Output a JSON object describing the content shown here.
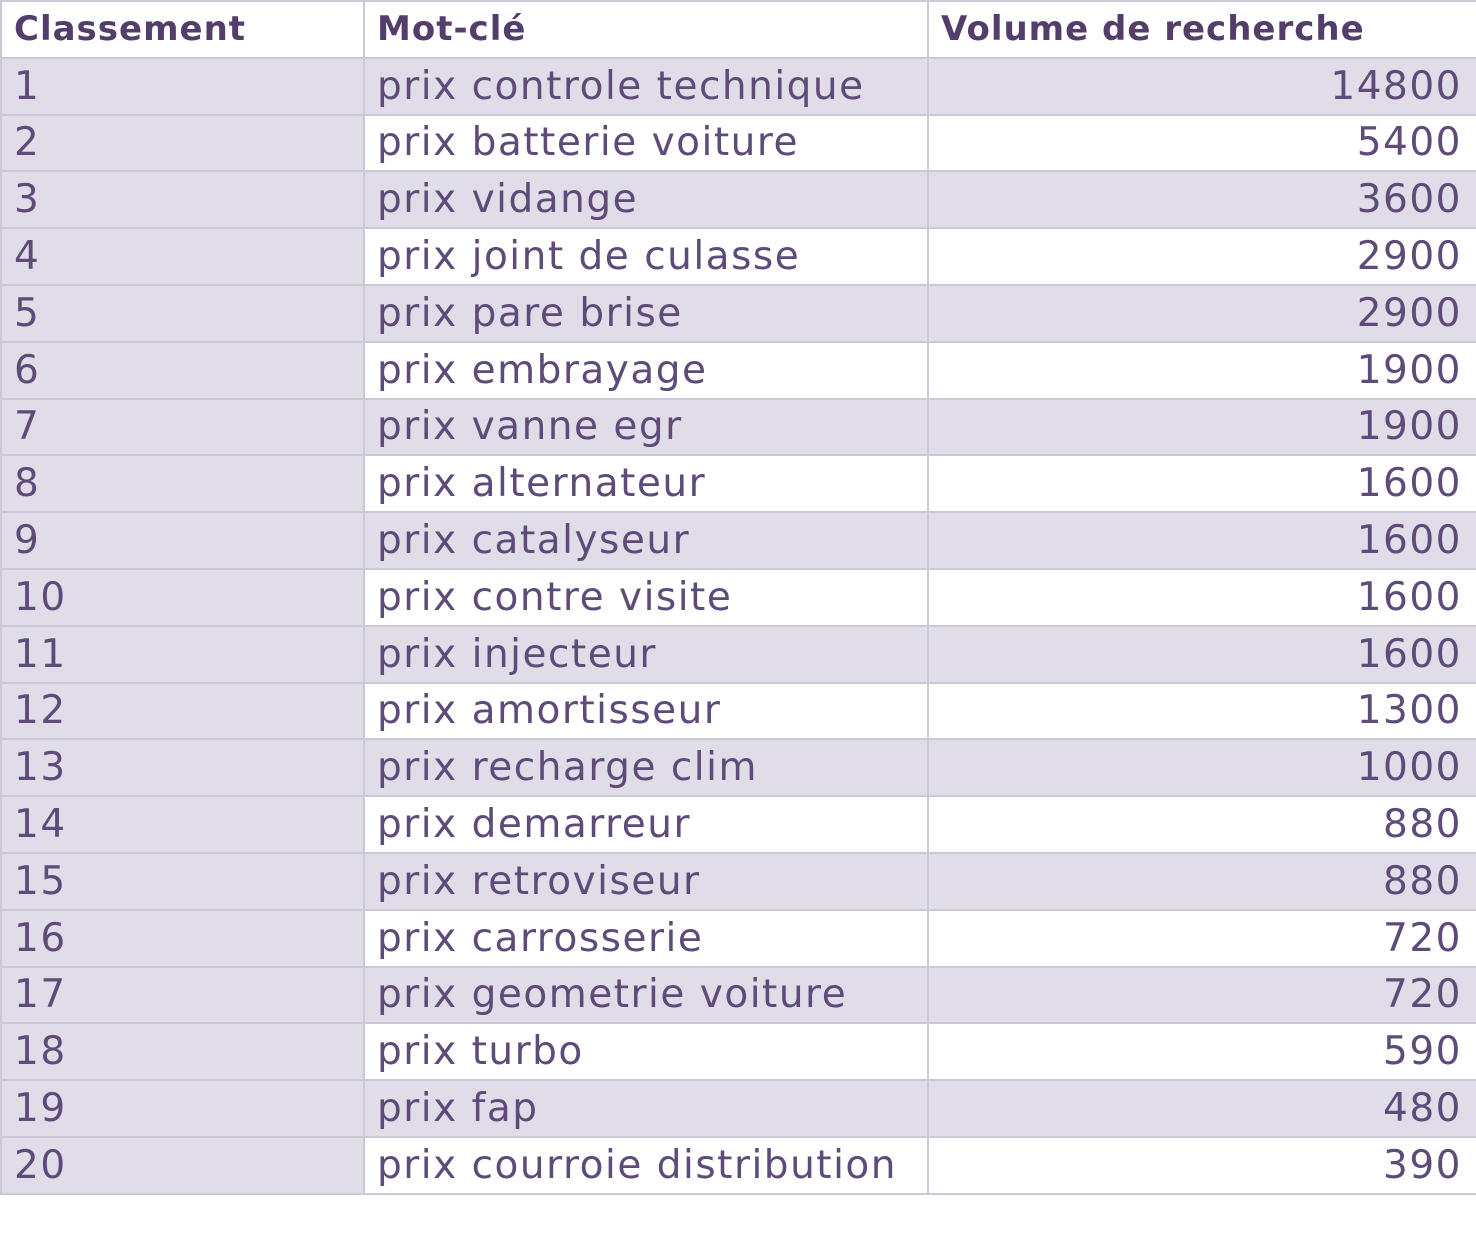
{
  "chart_data": {
    "type": "table",
    "columns": [
      "Classement",
      "Mot-clé",
      "Volume de recherche"
    ],
    "rows": [
      {
        "rank": "1",
        "keyword": "prix controle technique",
        "volume": "14800"
      },
      {
        "rank": "2",
        "keyword": "prix batterie voiture",
        "volume": "5400"
      },
      {
        "rank": "3",
        "keyword": "prix vidange",
        "volume": "3600"
      },
      {
        "rank": "4",
        "keyword": "prix joint de culasse",
        "volume": "2900"
      },
      {
        "rank": "5",
        "keyword": "prix pare brise",
        "volume": "2900"
      },
      {
        "rank": "6",
        "keyword": "prix embrayage",
        "volume": "1900"
      },
      {
        "rank": "7",
        "keyword": "prix vanne egr",
        "volume": "1900"
      },
      {
        "rank": "8",
        "keyword": "prix alternateur",
        "volume": "1600"
      },
      {
        "rank": "9",
        "keyword": "prix catalyseur",
        "volume": "1600"
      },
      {
        "rank": "10",
        "keyword": "prix contre visite",
        "volume": "1600"
      },
      {
        "rank": "11",
        "keyword": "prix injecteur",
        "volume": "1600"
      },
      {
        "rank": "12",
        "keyword": "prix amortisseur",
        "volume": "1300"
      },
      {
        "rank": "13",
        "keyword": "prix recharge clim",
        "volume": "1000"
      },
      {
        "rank": "14",
        "keyword": "prix demarreur",
        "volume": "880"
      },
      {
        "rank": "15",
        "keyword": "prix retroviseur",
        "volume": "880"
      },
      {
        "rank": "16",
        "keyword": "prix carrosserie",
        "volume": "720"
      },
      {
        "rank": "17",
        "keyword": "prix geometrie voiture",
        "volume": "720"
      },
      {
        "rank": "18",
        "keyword": "prix turbo",
        "volume": "590"
      },
      {
        "rank": "19",
        "keyword": "prix fap",
        "volume": "480"
      },
      {
        "rank": "20",
        "keyword": "prix courroie distribution",
        "volume": "390"
      }
    ]
  },
  "colors": {
    "lavender_bg": "#e0dde9",
    "grid_border": "#cbc8d8",
    "header_text": "#533e6b",
    "body_text": "#5e4b79",
    "white_bg": "#ffffff"
  }
}
